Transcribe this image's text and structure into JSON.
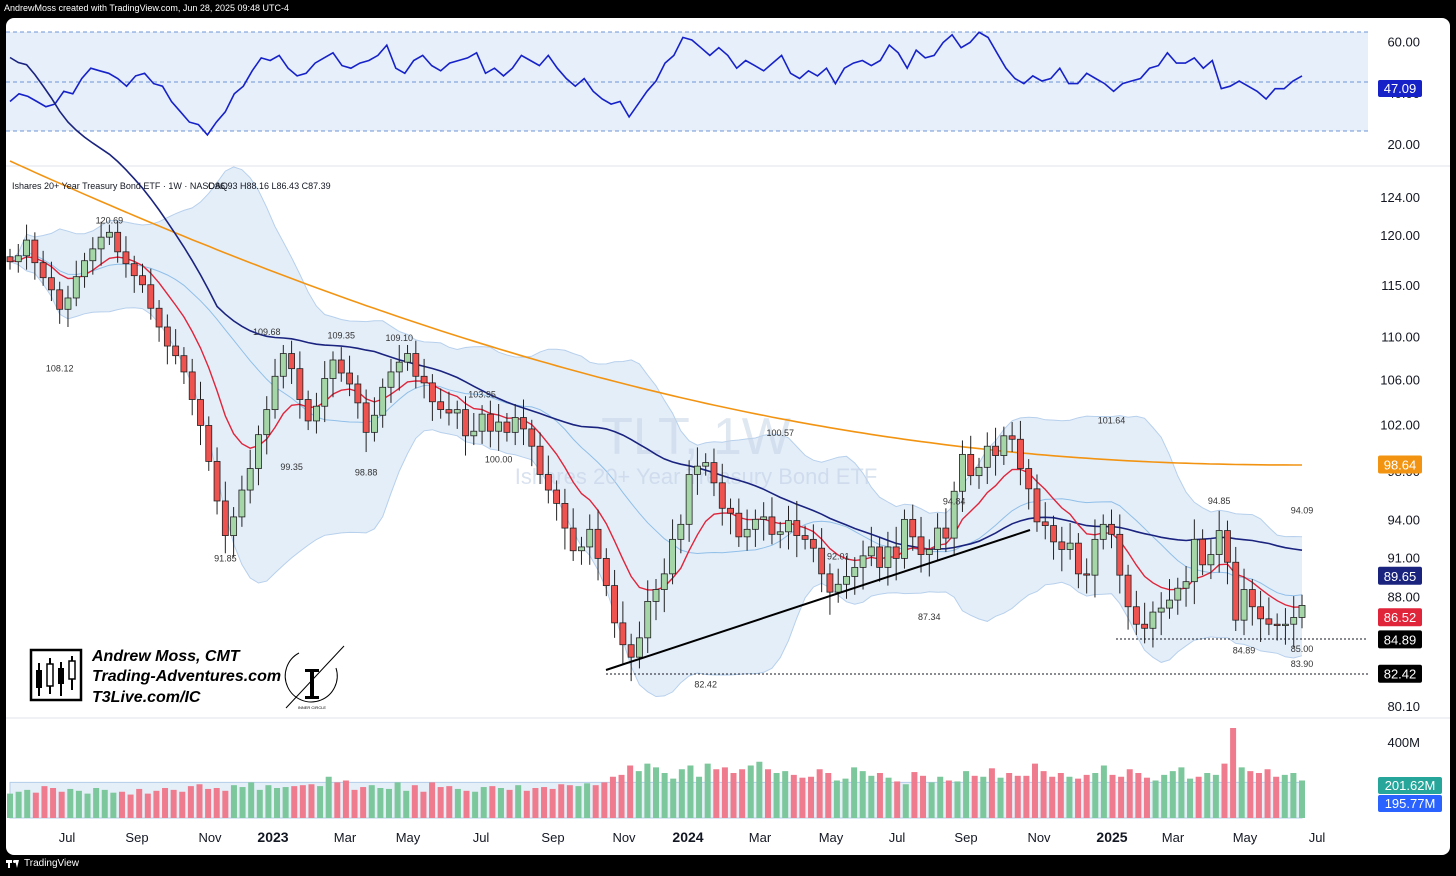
{
  "header": {
    "attribution": "AndrewMoss created with TradingView.com, Jun 28, 2025 09:48 UTC-4"
  },
  "footer": {
    "brand": "TradingView"
  },
  "legend": {
    "series_line": "Ishares 20+ Year Treasury Bond ETF · 1W · NASDAQ",
    "ohlc": "O86.93  H88.16  L86.43  C87.39"
  },
  "watermark": {
    "symbol": "TLT, 1W",
    "name": "Ishares 20+ Year Treasury Bond ETF"
  },
  "author": {
    "name": "Andrew Moss, CMT",
    "site": "Trading-Adventures.com",
    "link": "T3Live.com/IC",
    "logo_caption": "INNER CIRCLE"
  },
  "colors": {
    "up": "#26a69a",
    "up_fill": "#a5d6a7",
    "down": "#ef5350",
    "down_fill": "#ef9a9a",
    "rsi": "#1622c8",
    "sma200": "#f29412",
    "sma50": "#1a237e",
    "ema10": "#e0243a",
    "bbands": "#90bfe8"
  },
  "chart_data": [
    {
      "type": "line",
      "panel": "RSI",
      "title": "",
      "ylabel": "",
      "ylim": [
        15,
        68
      ],
      "y_ticks": [
        "60.00",
        "40.00",
        "20.00"
      ],
      "band": [
        30,
        70
      ],
      "midline": 50,
      "current": "47.09",
      "values": [
        37,
        40,
        39,
        37,
        35,
        36,
        41,
        40,
        46,
        50,
        49,
        48,
        46,
        43,
        47,
        48,
        44,
        43,
        37,
        33,
        29,
        28,
        24,
        29,
        33,
        40,
        43,
        49,
        54,
        53,
        55,
        50,
        47,
        48,
        52,
        54,
        56,
        51,
        50,
        52,
        53,
        55,
        59,
        50,
        48,
        53,
        55,
        51,
        49,
        52,
        53,
        54,
        56,
        48,
        50,
        47,
        50,
        55,
        53,
        51,
        55,
        50,
        46,
        43,
        46,
        41,
        38,
        36,
        37,
        31,
        36,
        41,
        45,
        52,
        55,
        62,
        61,
        58,
        55,
        58,
        55,
        50,
        53,
        51,
        49,
        52,
        55,
        48,
        46,
        49,
        47,
        50,
        44,
        50,
        52,
        53,
        51,
        53,
        59,
        56,
        50,
        57,
        54,
        55,
        60,
        63,
        58,
        60,
        64,
        62,
        56,
        50,
        46,
        44,
        47,
        45,
        46,
        50,
        44,
        44,
        48,
        46,
        44,
        41,
        44,
        45,
        46,
        50,
        51,
        56,
        52,
        52,
        54,
        50,
        53,
        42,
        43,
        45,
        43,
        41,
        38,
        42,
        42,
        45,
        47
      ]
    },
    {
      "type": "candlestick",
      "panel": "Price",
      "title": "Ishares 20+ Year Treasury Bond ETF",
      "xlabel": "",
      "ylabel": "",
      "ylim": [
        79,
        126
      ],
      "y_ticks": [
        "124.00",
        "120.00",
        "115.00",
        "110.00",
        "106.00",
        "102.00",
        "98.00",
        "94.00",
        "91.00",
        "88.00",
        "80.10"
      ],
      "x_ticks": [
        "Jul",
        "Sep",
        "Nov",
        "2023",
        "Mar",
        "May",
        "Jul",
        "Sep",
        "Nov",
        "2024",
        "Mar",
        "May",
        "Jul",
        "Sep",
        "Nov",
        "2025",
        "Mar",
        "May",
        "Jul"
      ],
      "close": [
        117.4,
        118.0,
        119.6,
        117.3,
        115.8,
        114.6,
        112.7,
        113.8,
        115.9,
        117.5,
        118.7,
        119.9,
        120.4,
        118.4,
        117.2,
        116.0,
        115.1,
        112.8,
        111.0,
        109.2,
        108.3,
        106.8,
        104.3,
        102.0,
        98.9,
        95.6,
        92.8,
        94.3,
        96.5,
        98.3,
        101.2,
        103.4,
        106.4,
        108.5,
        107.1,
        104.3,
        102.4,
        103.7,
        106.2,
        107.9,
        106.7,
        105.7,
        104.0,
        101.4,
        102.9,
        105.4,
        106.8,
        107.7,
        108.5,
        106.4,
        105.8,
        104.1,
        103.4,
        103.1,
        103.4,
        101.1,
        101.5,
        103.0,
        101.5,
        102.3,
        101.4,
        102.7,
        101.7,
        100.2,
        97.8,
        96.5,
        95.4,
        93.4,
        91.6,
        91.9,
        93.3,
        91.0,
        88.9,
        86.1,
        84.5,
        83.6,
        85.0,
        87.7,
        88.6,
        89.8,
        92.5,
        93.7,
        97.8,
        98.5,
        98.8,
        97.1,
        95.0,
        94.6,
        92.7,
        93.3,
        94.1,
        94.3,
        92.9,
        93.1,
        94.0,
        92.8,
        92.5,
        91.8,
        89.8,
        88.4,
        89.0,
        89.6,
        90.3,
        91.2,
        91.9,
        90.3,
        91.9,
        91.0,
        94.1,
        92.7,
        91.3,
        91.7,
        93.4,
        92.6,
        96.4,
        99.5,
        97.7,
        98.4,
        100.2,
        99.4,
        101.1,
        100.8,
        98.3,
        96.6,
        93.9,
        93.6,
        92.3,
        91.7,
        92.2,
        89.8,
        89.7,
        92.5,
        93.7,
        92.9,
        89.7,
        87.3,
        86.0,
        85.7,
        86.9,
        87.2,
        87.8,
        88.7,
        89.2,
        92.5,
        90.5,
        91.3,
        93.2,
        90.7,
        86.3,
        88.6,
        87.3,
        86.4,
        86.0,
        85.9,
        86.0,
        86.5,
        87.4
      ],
      "annotations": [
        "120.69",
        "108.12",
        "109.68",
        "99.35",
        "109.35",
        "98.88",
        "109.10",
        "103.95",
        "100.00",
        "91.85",
        "100.57",
        "92.01",
        "94.84",
        "87.34",
        "82.42",
        "101.64",
        "94.85",
        "84.89",
        "94.09",
        "85.00",
        "83.90"
      ],
      "price_tags": [
        {
          "value": "98.64",
          "series": "SMA 200"
        },
        {
          "value": "89.65",
          "series": "SMA 50"
        },
        {
          "value": "86.52",
          "series": "EMA 10"
        },
        {
          "value": "84.89",
          "series": "support"
        },
        {
          "value": "82.42",
          "series": "support"
        }
      ],
      "support_levels": [
        84.89,
        82.42
      ],
      "trendline": [
        [
          82.42,
          "Oct 2023"
        ],
        [
          93.6,
          "Oct 2024"
        ]
      ]
    },
    {
      "type": "bar",
      "panel": "Volume",
      "title": "",
      "y_ticks": [
        "400M"
      ],
      "ylim": [
        0,
        480
      ],
      "current": "201.62M",
      "average": "195.77M",
      "values": [
        130,
        140,
        150,
        135,
        170,
        160,
        140,
        155,
        145,
        130,
        160,
        150,
        135,
        140,
        125,
        155,
        130,
        145,
        160,
        150,
        140,
        170,
        180,
        155,
        160,
        145,
        175,
        165,
        190,
        150,
        175,
        160,
        165,
        170,
        175,
        180,
        170,
        220,
        190,
        200,
        150,
        165,
        175,
        160,
        155,
        190,
        145,
        175,
        140,
        190,
        165,
        170,
        155,
        145,
        140,
        165,
        170,
        160,
        150,
        175,
        145,
        160,
        165,
        155,
        180,
        175,
        170,
        185,
        175,
        190,
        220,
        230,
        280,
        250,
        290,
        270,
        240,
        210,
        260,
        280,
        220,
        290,
        260,
        270,
        240,
        260,
        280,
        300,
        260,
        240,
        250,
        230,
        215,
        220,
        260,
        240,
        200,
        210,
        270,
        250,
        225,
        240,
        215,
        195,
        180,
        245,
        225,
        190,
        220,
        200,
        195,
        250,
        225,
        220,
        265,
        215,
        240,
        225,
        225,
        290,
        250,
        220,
        240,
        220,
        210,
        230,
        240,
        280,
        230,
        220,
        260,
        240,
        215,
        200,
        230,
        250,
        270,
        210,
        220,
        240,
        230,
        290,
        480,
        270,
        250,
        240,
        260,
        220,
        230,
        240,
        200
      ]
    }
  ]
}
